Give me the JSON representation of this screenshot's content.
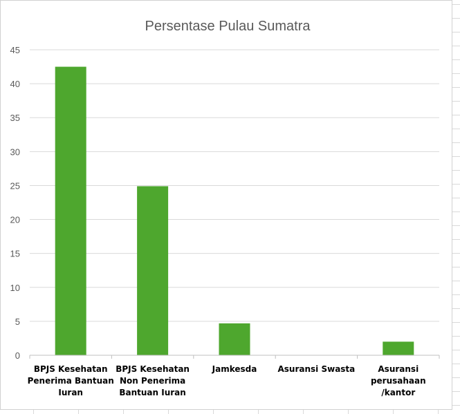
{
  "chart_data": {
    "type": "bar",
    "title": "Persentase Pulau Sumatra",
    "xlabel": "",
    "ylabel": "",
    "categories": [
      [
        "BPJS Kesehatan",
        "Penerima Bantuan",
        "Iuran"
      ],
      [
        "BPJS Kesehatan",
        "Non Penerima",
        "Bantuan Iuran"
      ],
      [
        "Jamkesda"
      ],
      [
        "Asuransi Swasta"
      ],
      [
        "Asuransi",
        "perusahaan",
        "/kantor"
      ]
    ],
    "values": [
      42.5,
      24.9,
      4.7,
      0,
      2.0
    ],
    "ylim": [
      0,
      45
    ],
    "yticks": [
      0,
      5,
      10,
      15,
      20,
      25,
      30,
      35,
      40,
      45
    ],
    "grid": true,
    "legend": "none",
    "colors": {
      "bar": "#4ea72e",
      "grid": "#d9d9d9",
      "axis": "#bfbfbf"
    }
  }
}
